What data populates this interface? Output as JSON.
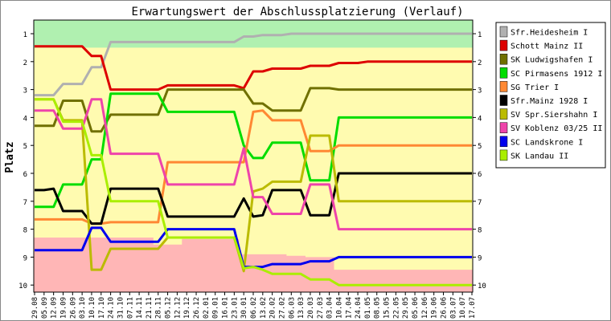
{
  "chart_data": {
    "type": "line",
    "title": "Erwartungswert der Abschlussplatzierung (Verlauf)",
    "ylabel": "Platz",
    "xlabel": "",
    "ylim": [
      10,
      1
    ],
    "grid": false,
    "legend_position": "right",
    "y_ticks": [
      1,
      2,
      3,
      4,
      5,
      6,
      7,
      8,
      9,
      10
    ],
    "x": [
      "29.08",
      "05.09",
      "12.09",
      "19.09",
      "26.09",
      "03.10",
      "10.10",
      "17.10",
      "24.10",
      "31.10",
      "07.11",
      "14.11",
      "21.11",
      "28.11",
      "05.12",
      "12.12",
      "19.12",
      "26.12",
      "02.01",
      "09.01",
      "16.01",
      "23.01",
      "30.01",
      "06.02",
      "13.02",
      "20.02",
      "27.02",
      "06.03",
      "13.03",
      "20.03",
      "27.03",
      "03.04",
      "10.04",
      "17.04",
      "24.04",
      "01.05",
      "08.05",
      "15.05",
      "22.05",
      "29.05",
      "05.06",
      "12.06",
      "19.06",
      "26.06",
      "03.07",
      "10.07",
      "17.07"
    ],
    "bands": [
      {
        "name": "promotion",
        "color": "#b0f0b0",
        "from_y": 0.5,
        "to_y": 1.5
      },
      {
        "name": "middle",
        "color": "#fffbb0",
        "from_y": 1.5,
        "to_y": 8.5
      },
      {
        "name": "relegation",
        "color": "#ffb6b6"
      }
    ],
    "series": [
      {
        "name": "Sfr.Heidesheim I",
        "color": "#b0b0b0",
        "values": [
          3.2,
          3.2,
          3.2,
          2.8,
          2.8,
          2.8,
          2.2,
          2.2,
          1.3,
          1.3,
          1.3,
          1.3,
          1.3,
          1.3,
          1.3,
          1.3,
          1.3,
          1.3,
          1.3,
          1.3,
          1.3,
          1.3,
          1.1,
          1.1,
          1.05,
          1.05,
          1.05,
          1.0,
          1.0,
          1.0,
          1.0,
          1.0,
          1.0,
          1.0,
          1.0,
          1.0,
          1.0,
          1.0,
          1.0,
          1.0,
          1.0,
          1.0,
          1.0,
          1.0,
          1.0,
          1.0,
          1.0
        ]
      },
      {
        "name": "Schott Mainz II",
        "color": "#dd0000",
        "values": [
          1.45,
          1.45,
          1.45,
          1.45,
          1.45,
          1.45,
          1.8,
          1.8,
          3.0,
          3.0,
          3.0,
          3.0,
          3.0,
          3.0,
          2.85,
          2.85,
          2.85,
          2.85,
          2.85,
          2.85,
          2.85,
          2.85,
          2.95,
          2.35,
          2.35,
          2.25,
          2.25,
          2.25,
          2.25,
          2.15,
          2.15,
          2.15,
          2.05,
          2.05,
          2.05,
          2.0,
          2.0,
          2.0,
          2.0,
          2.0,
          2.0,
          2.0,
          2.0,
          2.0,
          2.0,
          2.0,
          2.0
        ]
      },
      {
        "name": "SK Ludwigshafen I",
        "color": "#707000",
        "values": [
          4.3,
          4.3,
          4.3,
          3.4,
          3.4,
          3.4,
          4.5,
          4.5,
          3.9,
          3.9,
          3.9,
          3.9,
          3.9,
          3.9,
          3.0,
          3.0,
          3.0,
          3.0,
          3.0,
          3.0,
          3.0,
          3.0,
          3.0,
          3.5,
          3.5,
          3.75,
          3.75,
          3.75,
          3.75,
          2.95,
          2.95,
          2.95,
          3.0,
          3.0,
          3.0,
          3.0,
          3.0,
          3.0,
          3.0,
          3.0,
          3.0,
          3.0,
          3.0,
          3.0,
          3.0,
          3.0,
          3.0
        ]
      },
      {
        "name": "SC Pirmasens 1912 I",
        "color": "#00dd00",
        "values": [
          7.2,
          7.2,
          7.2,
          6.4,
          6.4,
          6.4,
          5.5,
          5.5,
          3.15,
          3.15,
          3.15,
          3.15,
          3.15,
          3.15,
          3.8,
          3.8,
          3.8,
          3.8,
          3.8,
          3.8,
          3.8,
          3.8,
          5.0,
          5.45,
          5.45,
          4.9,
          4.9,
          4.9,
          4.9,
          6.25,
          6.25,
          6.25,
          4.0,
          4.0,
          4.0,
          4.0,
          4.0,
          4.0,
          4.0,
          4.0,
          4.0,
          4.0,
          4.0,
          4.0,
          4.0,
          4.0,
          4.0
        ]
      },
      {
        "name": "SG Trier I",
        "color": "#ff8833",
        "values": [
          7.65,
          7.65,
          7.65,
          7.65,
          7.65,
          7.65,
          7.8,
          7.8,
          7.75,
          7.75,
          7.75,
          7.75,
          7.75,
          7.75,
          5.6,
          5.6,
          5.6,
          5.6,
          5.6,
          5.6,
          5.6,
          5.6,
          5.6,
          3.8,
          3.75,
          4.1,
          4.1,
          4.1,
          4.1,
          5.2,
          5.2,
          5.2,
          5.0,
          5.0,
          5.0,
          5.0,
          5.0,
          5.0,
          5.0,
          5.0,
          5.0,
          5.0,
          5.0,
          5.0,
          5.0,
          5.0,
          5.0
        ]
      },
      {
        "name": "Sfr.Mainz 1928 I",
        "color": "#000000",
        "values": [
          6.6,
          6.6,
          6.55,
          7.35,
          7.35,
          7.35,
          7.8,
          7.8,
          6.55,
          6.55,
          6.55,
          6.55,
          6.55,
          6.55,
          7.55,
          7.55,
          7.55,
          7.55,
          7.55,
          7.55,
          7.55,
          7.55,
          6.9,
          7.55,
          7.5,
          6.6,
          6.6,
          6.6,
          6.6,
          7.5,
          7.5,
          7.5,
          6.0,
          6.0,
          6.0,
          6.0,
          6.0,
          6.0,
          6.0,
          6.0,
          6.0,
          6.0,
          6.0,
          6.0,
          6.0,
          6.0,
          6.0
        ]
      },
      {
        "name": "SV Spr.Siershahn I",
        "color": "#bbbb00",
        "values": [
          3.35,
          3.35,
          3.35,
          4.1,
          4.1,
          4.1,
          9.45,
          9.45,
          8.7,
          8.7,
          8.7,
          8.7,
          8.7,
          8.7,
          8.3,
          8.3,
          8.3,
          8.3,
          8.3,
          8.3,
          8.3,
          8.3,
          9.5,
          6.65,
          6.55,
          6.3,
          6.3,
          6.3,
          6.3,
          4.65,
          4.65,
          4.65,
          7.0,
          7.0,
          7.0,
          7.0,
          7.0,
          7.0,
          7.0,
          7.0,
          7.0,
          7.0,
          7.0,
          7.0,
          7.0,
          7.0,
          7.0
        ]
      },
      {
        "name": "SV Koblenz 03/25 II",
        "color": "#ee44aa",
        "values": [
          3.75,
          3.75,
          3.75,
          4.4,
          4.4,
          4.4,
          3.35,
          3.35,
          5.3,
          5.3,
          5.3,
          5.3,
          5.3,
          5.3,
          6.4,
          6.4,
          6.4,
          6.4,
          6.4,
          6.4,
          6.4,
          6.4,
          5.1,
          6.85,
          6.85,
          7.45,
          7.45,
          7.45,
          7.45,
          6.4,
          6.4,
          6.4,
          8.0,
          8.0,
          8.0,
          8.0,
          8.0,
          8.0,
          8.0,
          8.0,
          8.0,
          8.0,
          8.0,
          8.0,
          8.0,
          8.0,
          8.0
        ]
      },
      {
        "name": "SC Landskrone I",
        "color": "#0000ee",
        "values": [
          8.75,
          8.75,
          8.75,
          8.75,
          8.75,
          8.75,
          7.95,
          7.95,
          8.45,
          8.45,
          8.45,
          8.45,
          8.45,
          8.45,
          8.0,
          8.0,
          8.0,
          8.0,
          8.0,
          8.0,
          8.0,
          8.0,
          9.35,
          9.35,
          9.35,
          9.25,
          9.25,
          9.25,
          9.25,
          9.15,
          9.15,
          9.15,
          9.0,
          9.0,
          9.0,
          9.0,
          9.0,
          9.0,
          9.0,
          9.0,
          9.0,
          9.0,
          9.0,
          9.0,
          9.0,
          9.0,
          9.0
        ]
      },
      {
        "name": "SK Landau II",
        "color": "#aaee00",
        "values": [
          3.35,
          3.35,
          3.35,
          4.15,
          4.15,
          4.15,
          5.35,
          5.35,
          7.0,
          7.0,
          7.0,
          7.0,
          7.0,
          7.0,
          8.3,
          8.3,
          8.3,
          8.3,
          8.3,
          8.3,
          8.3,
          8.3,
          9.4,
          9.35,
          9.45,
          9.6,
          9.6,
          9.6,
          9.6,
          9.8,
          9.8,
          9.8,
          10.0,
          10.0,
          10.0,
          10.0,
          10.0,
          10.0,
          10.0,
          10.0,
          10.0,
          10.0,
          10.0,
          10.0,
          10.0,
          10.0,
          10.0
        ]
      }
    ]
  }
}
